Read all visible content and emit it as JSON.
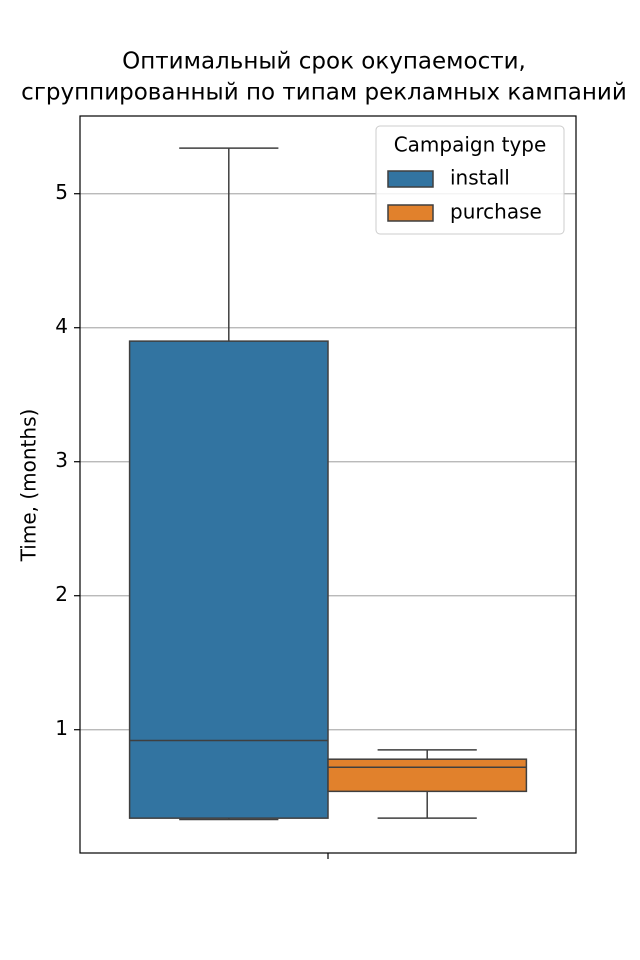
{
  "chart_data": {
    "type": "box",
    "title": [
      "Оптимальный срок окупаемости,",
      "сгруппированный по типам рекламных кампаний"
    ],
    "ylabel": "Time, (months)",
    "categories": [
      null
    ],
    "series": [
      {
        "name": "install",
        "color": "#3274a1",
        "whislo": [
          0.33
        ],
        "q1": [
          0.34
        ],
        "med": [
          0.92
        ],
        "q3": [
          3.9
        ],
        "whishi": [
          5.34
        ]
      },
      {
        "name": "purchase",
        "color": "#e1812c",
        "whislo": [
          0.34
        ],
        "q1": [
          0.54
        ],
        "med": [
          0.72
        ],
        "q3": [
          0.78
        ],
        "whishi": [
          0.85
        ]
      }
    ],
    "ylim": [
      0.08,
      5.58
    ],
    "yticks": [
      1,
      2,
      3,
      4,
      5
    ],
    "grid": true,
    "legend": {
      "title": "Campaign type",
      "loc": "upper right"
    }
  }
}
